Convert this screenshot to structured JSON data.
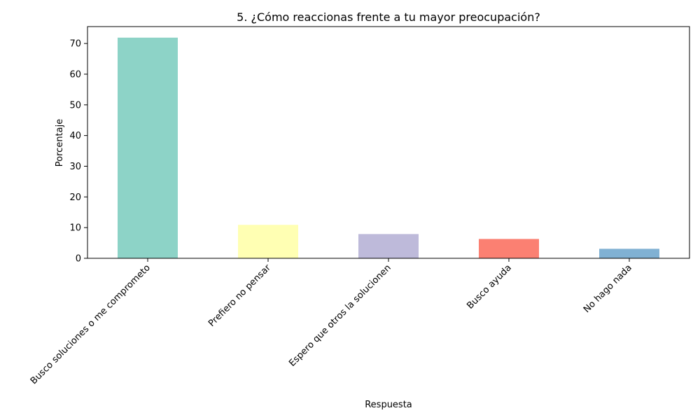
{
  "chart_data": {
    "type": "bar",
    "title": "5. ¿Cómo reaccionas frente a tu mayor preocupación?",
    "xlabel": "Respuesta",
    "ylabel": "Porcentaje",
    "categories": [
      "Busco soluciones o me comprometo",
      "Prefiero no pensar",
      "Espero que otros la solucionen",
      "Busco ayuda",
      "No hago nada"
    ],
    "values": [
      71.9,
      10.9,
      7.9,
      6.3,
      3.1
    ],
    "colors": [
      "#8dd3c7",
      "#ffffb3",
      "#bebada",
      "#fb8072",
      "#80b1d3"
    ],
    "ylim": [
      0,
      75.5
    ],
    "yticks": [
      0,
      10,
      20,
      30,
      40,
      50,
      60,
      70
    ],
    "grid": false,
    "legend": "none"
  }
}
